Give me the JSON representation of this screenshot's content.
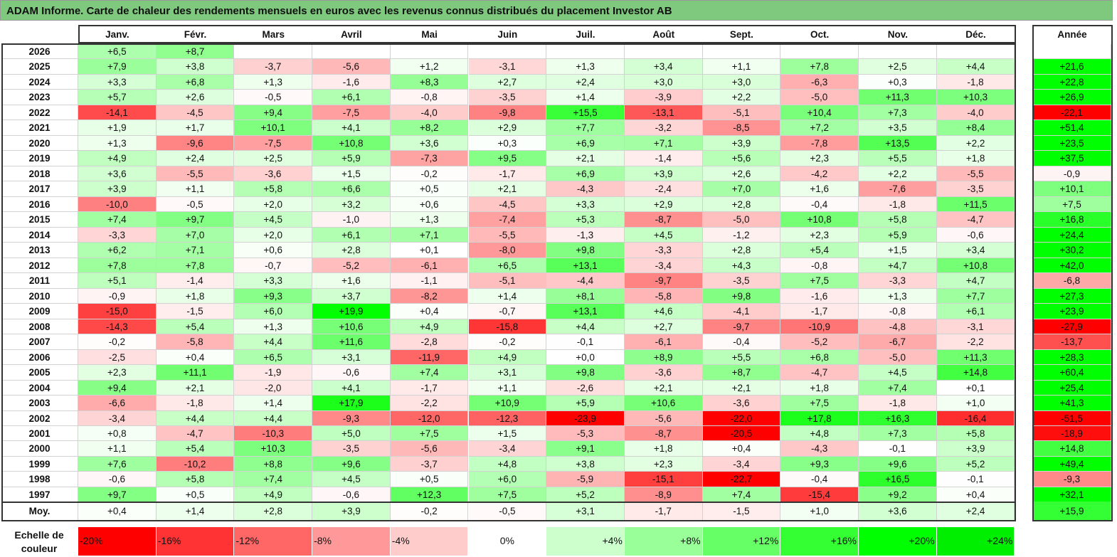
{
  "chart_data": {
    "type": "heatmap",
    "title": "ADAM Informe. Carte de chaleur des rendements mensuels en euros avec les revenus connus distribués du placement Investor AB",
    "months": [
      "Janv.",
      "Févr.",
      "Mars",
      "Avril",
      "Mai",
      "Juin",
      "Juil.",
      "Août",
      "Sept.",
      "Oct.",
      "Nov.",
      "Déc."
    ],
    "annual_header": "Année",
    "rows": [
      {
        "year": "2026",
        "values": [
          "+6,5",
          "+8,7",
          "",
          "",
          "",
          "",
          "",
          "",
          "",
          "",
          "",
          ""
        ],
        "annual": ""
      },
      {
        "year": "2025",
        "values": [
          "+7,9",
          "+3,8",
          "-3,7",
          "-5,6",
          "+1,2",
          "-3,1",
          "+1,3",
          "+3,4",
          "+1,1",
          "+7,8",
          "+2,5",
          "+4,4"
        ],
        "annual": "+21,6"
      },
      {
        "year": "2024",
        "values": [
          "+3,3",
          "+6,8",
          "+1,3",
          "-1,6",
          "+8,3",
          "+2,7",
          "+2,4",
          "+3,0",
          "+3,0",
          "-6,3",
          "+0,3",
          "-1,8"
        ],
        "annual": "+22,8"
      },
      {
        "year": "2023",
        "values": [
          "+5,7",
          "+2,6",
          "-0,5",
          "+6,1",
          "-0,8",
          "-3,5",
          "+1,4",
          "-3,9",
          "+2,2",
          "-5,0",
          "+11,3",
          "+10,3"
        ],
        "annual": "+26,9"
      },
      {
        "year": "2022",
        "values": [
          "-14,1",
          "-4,5",
          "+9,4",
          "-7,5",
          "-4,0",
          "-9,8",
          "+15,5",
          "-13,1",
          "-5,1",
          "+10,4",
          "+7,3",
          "-4,0"
        ],
        "annual": "-22,1"
      },
      {
        "year": "2021",
        "values": [
          "+1,9",
          "+1,7",
          "+10,1",
          "+4,1",
          "+8,2",
          "+2,9",
          "+7,7",
          "-3,2",
          "-8,5",
          "+7,2",
          "+3,5",
          "+8,4"
        ],
        "annual": "+51,4"
      },
      {
        "year": "2020",
        "values": [
          "+1,3",
          "-9,6",
          "-7,5",
          "+10,8",
          "+3,6",
          "+0,3",
          "+6,9",
          "+7,1",
          "+3,9",
          "-7,8",
          "+13,5",
          "+2,2"
        ],
        "annual": "+23,5"
      },
      {
        "year": "2019",
        "values": [
          "+4,9",
          "+2,4",
          "+2,5",
          "+5,9",
          "-7,3",
          "+9,5",
          "+2,1",
          "-1,4",
          "+5,6",
          "+2,3",
          "+5,5",
          "+1,8"
        ],
        "annual": "+37,5"
      },
      {
        "year": "2018",
        "values": [
          "+3,6",
          "-5,5",
          "-3,6",
          "+1,5",
          "-0,2",
          "-1,7",
          "+6,9",
          "+3,9",
          "+2,6",
          "-4,2",
          "+2,2",
          "-5,5"
        ],
        "annual": "-0,9"
      },
      {
        "year": "2017",
        "values": [
          "+3,9",
          "+1,1",
          "+5,8",
          "+6,6",
          "+0,5",
          "+2,1",
          "-4,3",
          "-2,4",
          "+7,0",
          "+1,6",
          "-7,6",
          "-3,5"
        ],
        "annual": "+10,1"
      },
      {
        "year": "2016",
        "values": [
          "-10,0",
          "-0,5",
          "+2,0",
          "+3,2",
          "+0,6",
          "-4,5",
          "+3,3",
          "+2,9",
          "+2,8",
          "-0,4",
          "-1,8",
          "+11,5"
        ],
        "annual": "+7,5"
      },
      {
        "year": "2015",
        "values": [
          "+7,4",
          "+9,7",
          "+4,5",
          "-1,0",
          "+1,3",
          "-7,4",
          "+5,3",
          "-8,7",
          "-5,0",
          "+10,8",
          "+5,8",
          "-4,7"
        ],
        "annual": "+16,8"
      },
      {
        "year": "2014",
        "values": [
          "-3,3",
          "+7,0",
          "+2,0",
          "+6,1",
          "+7,1",
          "-5,5",
          "-1,3",
          "+4,5",
          "-1,2",
          "+2,3",
          "+5,9",
          "-0,6"
        ],
        "annual": "+24,4"
      },
      {
        "year": "2013",
        "values": [
          "+6,2",
          "+7,1",
          "+0,6",
          "+2,8",
          "+0,1",
          "-8,0",
          "+9,8",
          "-3,3",
          "+2,8",
          "+5,4",
          "+1,5",
          "+3,4"
        ],
        "annual": "+30,2"
      },
      {
        "year": "2012",
        "values": [
          "+7,8",
          "+7,8",
          "-0,7",
          "-5,2",
          "-6,1",
          "+6,5",
          "+13,1",
          "-3,4",
          "+4,3",
          "-0,8",
          "+4,7",
          "+10,8"
        ],
        "annual": "+42,0"
      },
      {
        "year": "2011",
        "values": [
          "+5,1",
          "-1,4",
          "+3,3",
          "+1,6",
          "-1,1",
          "-5,1",
          "-4,4",
          "-9,7",
          "-3,5",
          "+7,5",
          "-3,3",
          "+4,7"
        ],
        "annual": "-6,8"
      },
      {
        "year": "2010",
        "values": [
          "-0,9",
          "+1,8",
          "+9,3",
          "+3,7",
          "-8,2",
          "+1,4",
          "+8,1",
          "-5,8",
          "+9,8",
          "-1,6",
          "+1,3",
          "+7,7"
        ],
        "annual": "+27,3"
      },
      {
        "year": "2009",
        "values": [
          "-15,0",
          "-1,5",
          "+6,0",
          "+19,9",
          "+0,4",
          "-0,7",
          "+13,1",
          "+4,6",
          "-4,1",
          "-1,7",
          "-0,8",
          "+6,1"
        ],
        "annual": "+23,9"
      },
      {
        "year": "2008",
        "values": [
          "-14,3",
          "+5,4",
          "+1,3",
          "+10,6",
          "+4,9",
          "-15,8",
          "+4,4",
          "+2,7",
          "-9,7",
          "-10,9",
          "-4,8",
          "-3,1"
        ],
        "annual": "-27,9"
      },
      {
        "year": "2007",
        "values": [
          "-0,2",
          "-5,8",
          "+4,4",
          "+11,6",
          "-2,8",
          "-0,2",
          "-0,1",
          "-6,1",
          "-0,4",
          "-5,2",
          "-6,7",
          "-2,2"
        ],
        "annual": "-13,7"
      },
      {
        "year": "2006",
        "values": [
          "-2,5",
          "+0,4",
          "+6,5",
          "+3,1",
          "-11,9",
          "+4,9",
          "+0,0",
          "+8,9",
          "+5,5",
          "+6,8",
          "-5,0",
          "+11,3"
        ],
        "annual": "+28,3"
      },
      {
        "year": "2005",
        "values": [
          "+2,3",
          "+11,1",
          "-1,9",
          "-0,6",
          "+7,4",
          "+3,1",
          "+9,8",
          "-3,6",
          "+8,7",
          "-4,7",
          "+4,5",
          "+14,8"
        ],
        "annual": "+60,4"
      },
      {
        "year": "2004",
        "values": [
          "+9,4",
          "+2,1",
          "-2,0",
          "+4,1",
          "-1,7",
          "+1,1",
          "-2,6",
          "+2,1",
          "+2,1",
          "+1,8",
          "+7,4",
          "+0,1"
        ],
        "annual": "+25,4"
      },
      {
        "year": "2003",
        "values": [
          "-6,6",
          "-1,8",
          "+1,4",
          "+17,9",
          "-2,2",
          "+10,9",
          "+5,9",
          "+10,6",
          "-3,6",
          "+7,5",
          "-1,8",
          "+1,0"
        ],
        "annual": "+41,3"
      },
      {
        "year": "2002",
        "values": [
          "-3,4",
          "+4,4",
          "+4,4",
          "-9,3",
          "-12,0",
          "-12,3",
          "-23,9",
          "-5,6",
          "-22,0",
          "+17,8",
          "+16,3",
          "-16,4"
        ],
        "annual": "-51,5"
      },
      {
        "year": "2001",
        "values": [
          "+0,8",
          "-4,7",
          "-10,3",
          "+5,0",
          "+7,5",
          "+1,5",
          "-5,3",
          "-8,7",
          "-20,5",
          "+4,8",
          "+7,3",
          "+5,8"
        ],
        "annual": "-18,9"
      },
      {
        "year": "2000",
        "values": [
          "+1,1",
          "+5,4",
          "+10,3",
          "-3,5",
          "-5,6",
          "-3,4",
          "+9,1",
          "+1,8",
          "+0,4",
          "-4,3",
          "-0,1",
          "+3,9"
        ],
        "annual": "+14,8"
      },
      {
        "year": "1999",
        "values": [
          "+7,6",
          "-10,2",
          "+8,8",
          "+9,6",
          "-3,7",
          "+4,8",
          "+3,8",
          "+2,3",
          "-3,4",
          "+9,3",
          "+9,6",
          "+5,2"
        ],
        "annual": "+49,4"
      },
      {
        "year": "1998",
        "values": [
          "-0,6",
          "+5,8",
          "+7,4",
          "+4,5",
          "+0,5",
          "+6,0",
          "-5,9",
          "-15,1",
          "-22,7",
          "-0,4",
          "+16,5",
          "-0,1"
        ],
        "annual": "-9,3"
      },
      {
        "year": "1997",
        "values": [
          "+9,7",
          "+0,5",
          "+4,9",
          "-0,6",
          "+12,3",
          "+7,5",
          "+5,2",
          "-8,9",
          "+7,4",
          "-15,4",
          "+9,2",
          "+0,4"
        ],
        "annual": "+32,1"
      }
    ],
    "average": {
      "label": "Moy.",
      "values": [
        "+0,4",
        "+1,4",
        "+2,8",
        "+3,9",
        "-0,2",
        "-0,5",
        "+3,1",
        "-1,7",
        "-1,5",
        "+1,0",
        "+3,6",
        "+2,4"
      ],
      "annual": "+15,9"
    },
    "legend": {
      "label": "Echelle de couleur",
      "items": [
        {
          "label": "-20%",
          "value": -20,
          "color": "#ff0000"
        },
        {
          "label": "-16%",
          "value": -16,
          "color": "#ff3333"
        },
        {
          "label": "-12%",
          "value": -12,
          "color": "#ff6666"
        },
        {
          "label": "-8%",
          "value": -8,
          "color": "#ff9999"
        },
        {
          "label": "-4%",
          "value": -4,
          "color": "#ffcccc"
        },
        {
          "label": "0%",
          "value": 0,
          "color": "#ffffff"
        },
        {
          "label": "+4%",
          "value": 4,
          "color": "#ccffcc"
        },
        {
          "label": "+8%",
          "value": 8,
          "color": "#99ff99"
        },
        {
          "label": "+12%",
          "value": 12,
          "color": "#66ff66"
        },
        {
          "label": "+16%",
          "value": 16,
          "color": "#33ff33"
        },
        {
          "label": "+20%",
          "value": 20,
          "color": "#00ff00"
        },
        {
          "label": "+24%",
          "value": 24,
          "color": "#00ee00"
        }
      ]
    }
  }
}
